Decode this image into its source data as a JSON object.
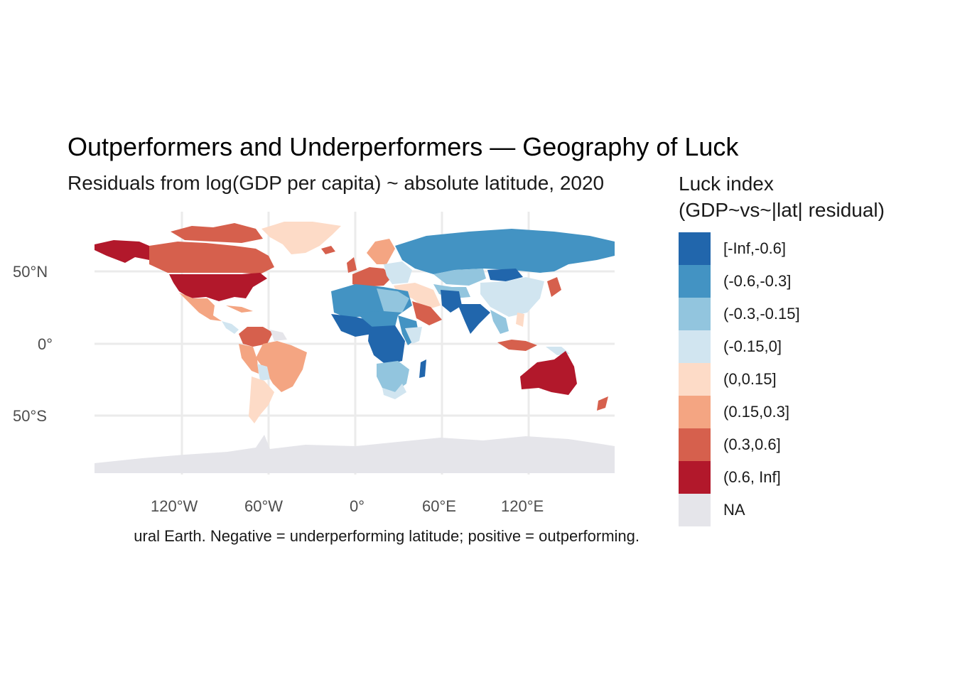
{
  "title": "Outperformers and Underperformers — Geography of Luck",
  "subtitle": "Residuals from log(GDP per capita) ~ absolute latitude, 2020",
  "caption": "ural Earth. Negative = underperforming latitude; positive = outperforming.",
  "legend": {
    "title_line1": "Luck index",
    "title_line2": "(GDP~vs~|lat| residual)",
    "items": [
      {
        "label": "[-Inf,-0.6]",
        "color": "#2166ac"
      },
      {
        "label": "(-0.6,-0.3]",
        "color": "#4393c3"
      },
      {
        "label": "(-0.3,-0.15]",
        "color": "#92c5de"
      },
      {
        "label": "(-0.15,0]",
        "color": "#d1e5f0"
      },
      {
        "label": "(0,0.15]",
        "color": "#fddbc7"
      },
      {
        "label": "(0.15,0.3]",
        "color": "#f4a582"
      },
      {
        "label": "(0.3,0.6]",
        "color": "#d6604d"
      },
      {
        "label": "(0.6, Inf]",
        "color": "#b2182b"
      },
      {
        "label": "NA",
        "color": "#e5e5ea"
      }
    ]
  },
  "axes": {
    "x_ticks": [
      "120°W",
      "60°W",
      "0°",
      "60°E",
      "120°E"
    ],
    "y_ticks": [
      "50°N",
      "0°",
      "50°S"
    ]
  },
  "colors": {
    "gridline": "#ebebeb",
    "na": "#e5e5ea"
  }
}
